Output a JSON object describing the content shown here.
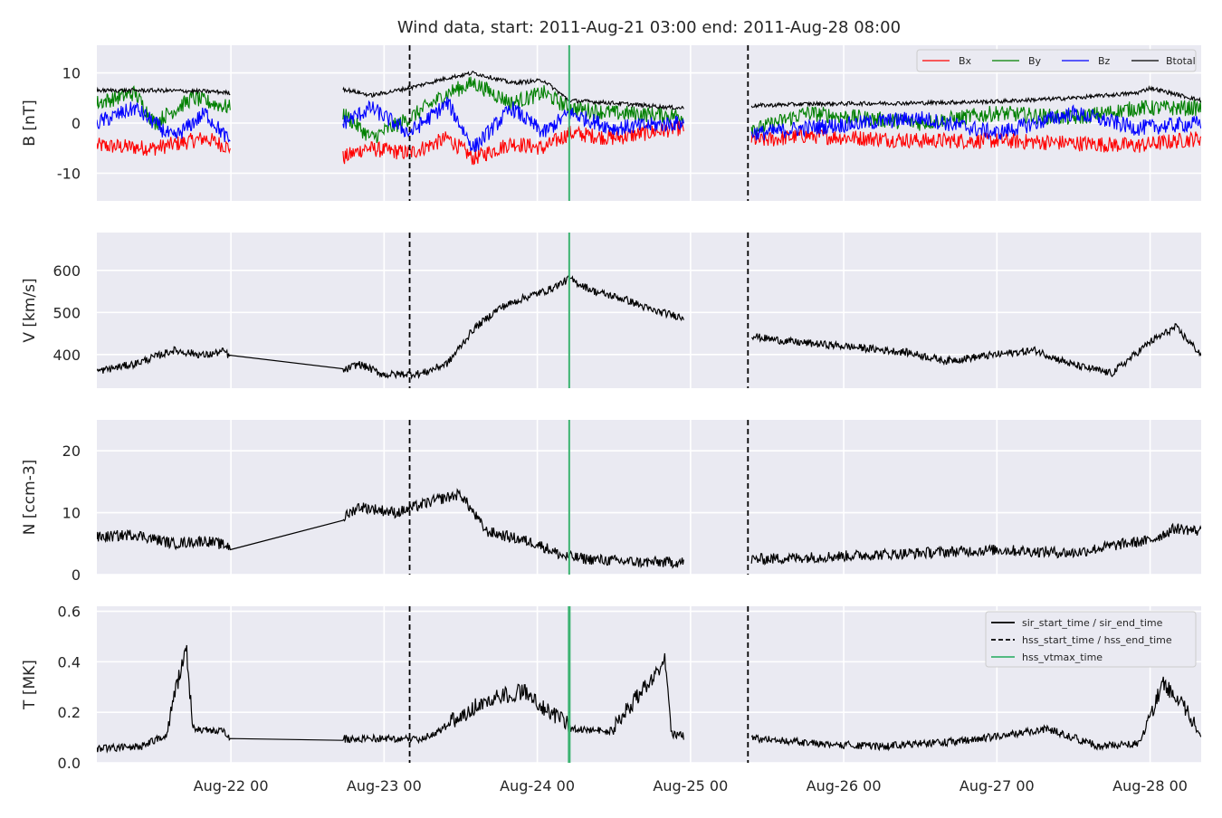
{
  "title": "Wind data, start: 2011-Aug-21 03:00  end: 2011-Aug-28 08:00",
  "colors": {
    "panel_bg": "#eaeaf2",
    "grid": "#ffffff",
    "bx": "#ff0000",
    "by": "#008000",
    "bz": "#0000ff",
    "btotal": "#000000",
    "hss_vtmax": "#3cb371",
    "event_line": "#000000"
  },
  "chart_data": {
    "type": "line",
    "x_axis": {
      "type": "datetime",
      "range": [
        "2011-08-21 03:00",
        "2011-08-28 08:00"
      ],
      "tick_labels": [
        "Aug-22 00",
        "Aug-23 00",
        "Aug-24 00",
        "Aug-25 00",
        "Aug-26 00",
        "Aug-27 00",
        "Aug-28 00"
      ],
      "tick_values": [
        "2011-08-22 00:00",
        "2011-08-23 00:00",
        "2011-08-24 00:00",
        "2011-08-25 00:00",
        "2011-08-26 00:00",
        "2011-08-27 00:00",
        "2011-08-28 00:00"
      ]
    },
    "data_gaps": [
      [
        "2011-08-22 00:00",
        "2011-08-22 17:30"
      ],
      [
        "2011-08-24 23:00",
        "2011-08-25 09:30"
      ]
    ],
    "event_lines": [
      {
        "time": "2011-08-23 04:00",
        "style": "dashed",
        "color": "#000000"
      },
      {
        "time": "2011-08-24 05:00",
        "style": "solid",
        "color": "#3cb371"
      },
      {
        "time": "2011-08-25 09:00",
        "style": "dashed",
        "color": "#000000"
      }
    ],
    "panels": [
      {
        "ylabel": "B [nT]",
        "ylim": [
          -15.5,
          15.5
        ],
        "yticks": [
          -10,
          0,
          10
        ],
        "grid": true,
        "legend": {
          "placement": "top-right",
          "entries": [
            "Bx",
            "By",
            "Bz",
            "Btotal"
          ]
        },
        "series": [
          {
            "name": "Btotal",
            "color": "#000000",
            "points": [
              [
                "2011-08-21 03:00",
                6.5
              ],
              [
                "2011-08-21 12:00",
                6.5
              ],
              [
                "2011-08-21 21:00",
                6.3
              ],
              [
                "2011-08-22 00:00",
                6.0
              ],
              [
                "2011-08-22 17:30",
                6.8
              ],
              [
                "2011-08-22 22:00",
                5.5
              ],
              [
                "2011-08-23 04:00",
                7.0
              ],
              [
                "2011-08-23 10:00",
                9.0
              ],
              [
                "2011-08-23 14:00",
                10.0
              ],
              [
                "2011-08-23 20:00",
                8.0
              ],
              [
                "2011-08-24 01:00",
                8.5
              ],
              [
                "2011-08-24 05:00",
                4.5
              ],
              [
                "2011-08-24 12:00",
                4.0
              ],
              [
                "2011-08-24 22:00",
                3.0
              ],
              [
                "2011-08-25 11:00",
                3.5
              ],
              [
                "2011-08-25 18:00",
                3.8
              ],
              [
                "2011-08-26 12:00",
                4.0
              ],
              [
                "2011-08-27 00:00",
                4.3
              ],
              [
                "2011-08-27 12:00",
                5.0
              ],
              [
                "2011-08-27 22:00",
                6.0
              ],
              [
                "2011-08-28 00:00",
                7.0
              ],
              [
                "2011-08-28 08:00",
                4.5
              ]
            ]
          },
          {
            "name": "Bx",
            "color": "#ff0000",
            "points": [
              [
                "2011-08-21 03:00",
                -4.5
              ],
              [
                "2011-08-21 12:00",
                -5.0
              ],
              [
                "2011-08-21 20:00",
                -3.0
              ],
              [
                "2011-08-22 00:00",
                -5.0
              ],
              [
                "2011-08-22 17:30",
                -7.0
              ],
              [
                "2011-08-22 21:00",
                -5.0
              ],
              [
                "2011-08-23 04:00",
                -6.0
              ],
              [
                "2011-08-23 10:00",
                -3.0
              ],
              [
                "2011-08-23 14:00",
                -7.0
              ],
              [
                "2011-08-23 20:00",
                -4.0
              ],
              [
                "2011-08-24 01:00",
                -5.0
              ],
              [
                "2011-08-24 05:00",
                -2.0
              ],
              [
                "2011-08-24 12:00",
                -3.0
              ],
              [
                "2011-08-24 22:00",
                -1.0
              ],
              [
                "2011-08-25 11:00",
                -3.5
              ],
              [
                "2011-08-25 18:00",
                -2.5
              ],
              [
                "2011-08-26 12:00",
                -3.5
              ],
              [
                "2011-08-27 00:00",
                -3.5
              ],
              [
                "2011-08-27 12:00",
                -4.0
              ],
              [
                "2011-08-27 22:00",
                -4.5
              ],
              [
                "2011-08-28 08:00",
                -3.0
              ]
            ]
          },
          {
            "name": "By",
            "color": "#008000",
            "points": [
              [
                "2011-08-21 03:00",
                4.0
              ],
              [
                "2011-08-21 09:00",
                6.0
              ],
              [
                "2011-08-21 12:00",
                0.0
              ],
              [
                "2011-08-21 18:00",
                5.0
              ],
              [
                "2011-08-22 00:00",
                3.0
              ],
              [
                "2011-08-22 17:30",
                2.0
              ],
              [
                "2011-08-22 22:00",
                -3.0
              ],
              [
                "2011-08-23 04:00",
                1.0
              ],
              [
                "2011-08-23 10:00",
                6.0
              ],
              [
                "2011-08-23 14:00",
                8.0
              ],
              [
                "2011-08-23 20:00",
                4.0
              ],
              [
                "2011-08-24 01:00",
                6.0
              ],
              [
                "2011-08-24 05:00",
                3.0
              ],
              [
                "2011-08-24 12:00",
                2.0
              ],
              [
                "2011-08-24 22:00",
                1.5
              ],
              [
                "2011-08-25 11:00",
                -1.0
              ],
              [
                "2011-08-25 18:00",
                2.0
              ],
              [
                "2011-08-26 12:00",
                0.0
              ],
              [
                "2011-08-27 00:00",
                2.0
              ],
              [
                "2011-08-27 12:00",
                1.0
              ],
              [
                "2011-08-27 22:00",
                3.0
              ],
              [
                "2011-08-28 08:00",
                3.0
              ]
            ]
          },
          {
            "name": "Bz",
            "color": "#0000ff",
            "points": [
              [
                "2011-08-21 03:00",
                0.0
              ],
              [
                "2011-08-21 09:00",
                3.0
              ],
              [
                "2011-08-21 15:00",
                -3.0
              ],
              [
                "2011-08-21 20:00",
                2.0
              ],
              [
                "2011-08-22 00:00",
                -4.0
              ],
              [
                "2011-08-22 17:30",
                0.0
              ],
              [
                "2011-08-22 22:00",
                3.0
              ],
              [
                "2011-08-23 04:00",
                -2.0
              ],
              [
                "2011-08-23 10:00",
                4.0
              ],
              [
                "2011-08-23 14:00",
                -5.0
              ],
              [
                "2011-08-23 20:00",
                3.0
              ],
              [
                "2011-08-24 01:00",
                -2.0
              ],
              [
                "2011-08-24 05:00",
                2.0
              ],
              [
                "2011-08-24 12:00",
                -1.0
              ],
              [
                "2011-08-24 22:00",
                0.0
              ],
              [
                "2011-08-25 11:00",
                -2.0
              ],
              [
                "2011-08-25 18:00",
                -1.0
              ],
              [
                "2011-08-26 12:00",
                1.0
              ],
              [
                "2011-08-27 00:00",
                -2.0
              ],
              [
                "2011-08-27 12:00",
                2.0
              ],
              [
                "2011-08-27 22:00",
                -1.0
              ],
              [
                "2011-08-28 08:00",
                0.0
              ]
            ]
          }
        ]
      },
      {
        "ylabel": "V [km/s]",
        "ylim": [
          320,
          690
        ],
        "yticks": [
          400,
          500,
          600
        ],
        "grid": true,
        "series": [
          {
            "name": "V",
            "color": "#000000",
            "points": [
              [
                "2011-08-21 03:00",
                360
              ],
              [
                "2011-08-21 09:00",
                378
              ],
              [
                "2011-08-21 15:00",
                410
              ],
              [
                "2011-08-21 20:00",
                398
              ],
              [
                "2011-08-21 23:00",
                408
              ],
              [
                "2011-08-22 00:00",
                392
              ],
              [
                "2011-08-22 17:30",
                360
              ],
              [
                "2011-08-22 20:00",
                378
              ],
              [
                "2011-08-23 00:00",
                352
              ],
              [
                "2011-08-23 06:00",
                355
              ],
              [
                "2011-08-23 10:00",
                380
              ],
              [
                "2011-08-23 14:00",
                460
              ],
              [
                "2011-08-23 18:00",
                510
              ],
              [
                "2011-08-23 22:00",
                535
              ],
              [
                "2011-08-24 02:00",
                555
              ],
              [
                "2011-08-24 05:00",
                580
              ],
              [
                "2011-08-24 09:00",
                550
              ],
              [
                "2011-08-24 14:00",
                530
              ],
              [
                "2011-08-24 18:00",
                505
              ],
              [
                "2011-08-24 23:00",
                488
              ],
              [
                "2011-08-25 11:00",
                440
              ],
              [
                "2011-08-25 16:00",
                430
              ],
              [
                "2011-08-26 00:00",
                420
              ],
              [
                "2011-08-26 10:00",
                405
              ],
              [
                "2011-08-26 16:00",
                385
              ],
              [
                "2011-08-27 00:00",
                400
              ],
              [
                "2011-08-27 06:00",
                410
              ],
              [
                "2011-08-27 12:00",
                375
              ],
              [
                "2011-08-27 18:00",
                355
              ],
              [
                "2011-08-28 00:00",
                430
              ],
              [
                "2011-08-28 04:00",
                465
              ],
              [
                "2011-08-28 08:00",
                400
              ]
            ]
          }
        ]
      },
      {
        "ylabel": "N [ccm-3]",
        "ylim": [
          0,
          25
        ],
        "yticks": [
          0,
          10,
          20
        ],
        "grid": true,
        "series": [
          {
            "name": "N",
            "color": "#000000",
            "points": [
              [
                "2011-08-21 03:00",
                6
              ],
              [
                "2011-08-21 09:00",
                6.5
              ],
              [
                "2011-08-21 15:00",
                5.0
              ],
              [
                "2011-08-21 20:00",
                5.5
              ],
              [
                "2011-08-22 00:00",
                4.5
              ],
              [
                "2011-08-22 17:30",
                9
              ],
              [
                "2011-08-22 20:00",
                11
              ],
              [
                "2011-08-23 02:00",
                10
              ],
              [
                "2011-08-23 08:00",
                12
              ],
              [
                "2011-08-23 12:00",
                13
              ],
              [
                "2011-08-23 16:00",
                7
              ],
              [
                "2011-08-23 20:00",
                6
              ],
              [
                "2011-08-24 00:00",
                5
              ],
              [
                "2011-08-24 04:00",
                3
              ],
              [
                "2011-08-24 08:00",
                2.5
              ],
              [
                "2011-08-24 16:00",
                2.0
              ],
              [
                "2011-08-24 23:00",
                2.0
              ],
              [
                "2011-08-25 11:00",
                2.5
              ],
              [
                "2011-08-26 00:00",
                3.0
              ],
              [
                "2011-08-26 12:00",
                3.5
              ],
              [
                "2011-08-27 00:00",
                4.0
              ],
              [
                "2011-08-27 12:00",
                3.5
              ],
              [
                "2011-08-27 20:00",
                5.0
              ],
              [
                "2011-08-28 00:00",
                5.5
              ],
              [
                "2011-08-28 04:00",
                7.5
              ],
              [
                "2011-08-28 08:00",
                7
              ]
            ]
          }
        ]
      },
      {
        "ylabel": "T [MK]",
        "ylim": [
          0,
          0.62
        ],
        "yticks": [
          0.0,
          0.2,
          0.4,
          0.6
        ],
        "grid": true,
        "legend": {
          "placement": "top-right",
          "entries": [
            "sir_start_time / sir_end_time",
            "hss_start_time / hss_end_time",
            "hss_vtmax_time"
          ]
        },
        "series": [
          {
            "name": "T",
            "color": "#000000",
            "points": [
              [
                "2011-08-21 03:00",
                0.04
              ],
              [
                "2011-08-21 10:00",
                0.05
              ],
              [
                "2011-08-21 14:00",
                0.1
              ],
              [
                "2011-08-21 17:00",
                0.43
              ],
              [
                "2011-08-21 18:00",
                0.12
              ],
              [
                "2011-08-21 23:00",
                0.11
              ],
              [
                "2011-08-22 00:00",
                0.07
              ],
              [
                "2011-08-22 17:30",
                0.08
              ],
              [
                "2011-08-22 20:00",
                0.08
              ],
              [
                "2011-08-23 06:00",
                0.08
              ],
              [
                "2011-08-23 12:00",
                0.15
              ],
              [
                "2011-08-23 16:00",
                0.22
              ],
              [
                "2011-08-23 22:00",
                0.25
              ],
              [
                "2011-08-24 01:00",
                0.18
              ],
              [
                "2011-08-24 05:00",
                0.12
              ],
              [
                "2011-08-24 12:00",
                0.11
              ],
              [
                "2011-08-24 20:00",
                0.37
              ],
              [
                "2011-08-24 21:00",
                0.1
              ],
              [
                "2011-08-24 23:00",
                0.09
              ],
              [
                "2011-08-25 11:00",
                0.08
              ],
              [
                "2011-08-25 20:00",
                0.06
              ],
              [
                "2011-08-26 06:00",
                0.05
              ],
              [
                "2011-08-26 18:00",
                0.07
              ],
              [
                "2011-08-27 00:00",
                0.09
              ],
              [
                "2011-08-27 08:00",
                0.12
              ],
              [
                "2011-08-27 16:00",
                0.05
              ],
              [
                "2011-08-27 22:00",
                0.06
              ],
              [
                "2011-08-28 00:00",
                0.15
              ],
              [
                "2011-08-28 02:00",
                0.28
              ],
              [
                "2011-08-28 05:00",
                0.2
              ],
              [
                "2011-08-28 08:00",
                0.08
              ]
            ]
          }
        ]
      }
    ]
  }
}
